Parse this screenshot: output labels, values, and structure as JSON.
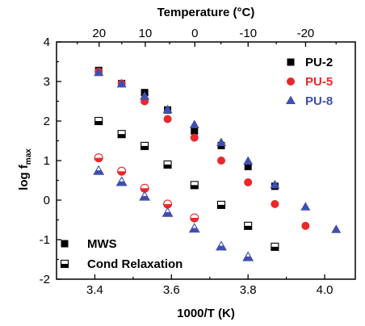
{
  "chart_data": {
    "type": "scatter",
    "xlabel": "1000/T (K)",
    "ylabel_main": "log f",
    "ylabel_sub": "max",
    "x2label": "Temperature (°C)",
    "xlim": [
      3.3,
      4.08
    ],
    "ylim": [
      -2,
      4
    ],
    "xticks": [
      3.4,
      3.6,
      3.8,
      4.0
    ],
    "xtick_labels": [
      "3.4",
      "3.6",
      "3.8",
      "4.0"
    ],
    "yticks": [
      -2,
      -1,
      0,
      1,
      2,
      3,
      4
    ],
    "ytick_labels": [
      "-2",
      "-1",
      "0",
      "1",
      "2",
      "3",
      "4"
    ],
    "x2ticks": [
      20,
      10,
      0,
      -10,
      -20
    ],
    "x2tick_labels": [
      "20",
      "10",
      "0",
      "-10",
      "-20"
    ],
    "colors": {
      "PU-2": "#000000",
      "PU-5": "#e8282b",
      "PU-8": "#3f4fb0"
    },
    "series": [
      {
        "name": "PU-2",
        "marker": "square",
        "fill": "full",
        "x": [
          3.41,
          3.47,
          3.53,
          3.59,
          3.66,
          3.73,
          3.8,
          3.87
        ],
        "y": [
          3.28,
          2.95,
          2.72,
          2.28,
          1.75,
          1.38,
          0.85,
          0.35
        ]
      },
      {
        "name": "PU-5",
        "marker": "circle",
        "fill": "full",
        "x": [
          3.41,
          3.47,
          3.53,
          3.59,
          3.66,
          3.73,
          3.8,
          3.87,
          3.95
        ],
        "y": [
          3.25,
          2.95,
          2.5,
          2.05,
          1.58,
          1.0,
          0.45,
          -0.1,
          -0.65
        ]
      },
      {
        "name": "PU-8",
        "marker": "triangle",
        "fill": "full",
        "x": [
          3.41,
          3.47,
          3.53,
          3.59,
          3.66,
          3.73,
          3.8,
          3.87,
          3.95,
          4.03
        ],
        "y": [
          3.22,
          2.93,
          2.62,
          2.28,
          1.9,
          1.45,
          0.98,
          0.38,
          -0.18,
          -0.75
        ]
      },
      {
        "name": "PU-2",
        "marker": "square",
        "fill": "half",
        "x": [
          3.41,
          3.47,
          3.53,
          3.59,
          3.66,
          3.73,
          3.8,
          3.87
        ],
        "y": [
          2.0,
          1.67,
          1.37,
          0.9,
          0.38,
          -0.12,
          -0.65,
          -1.18
        ]
      },
      {
        "name": "PU-5",
        "marker": "circle",
        "fill": "half",
        "x": [
          3.41,
          3.47,
          3.53,
          3.59,
          3.66
        ],
        "y": [
          1.07,
          0.73,
          0.3,
          -0.1,
          -0.45
        ]
      },
      {
        "name": "PU-8",
        "marker": "triangle",
        "fill": "half",
        "x": [
          3.41,
          3.47,
          3.53,
          3.59,
          3.66,
          3.73,
          3.8
        ],
        "y": [
          0.73,
          0.45,
          0.08,
          -0.33,
          -0.73,
          -1.18,
          -1.45
        ]
      }
    ],
    "legend_series": {
      "location": "top-right",
      "items": [
        {
          "label": "PU-2",
          "marker": "square",
          "color": "#000000"
        },
        {
          "label": "PU-5",
          "marker": "circle",
          "color": "#e8282b"
        },
        {
          "label": "PU-8",
          "marker": "triangle",
          "color": "#3f4fb0"
        }
      ]
    },
    "legend_type": {
      "location": "bottom-left",
      "items": [
        {
          "label": "MWS",
          "fill": "full"
        },
        {
          "label": "Cond Relaxation",
          "fill": "half"
        }
      ]
    }
  }
}
